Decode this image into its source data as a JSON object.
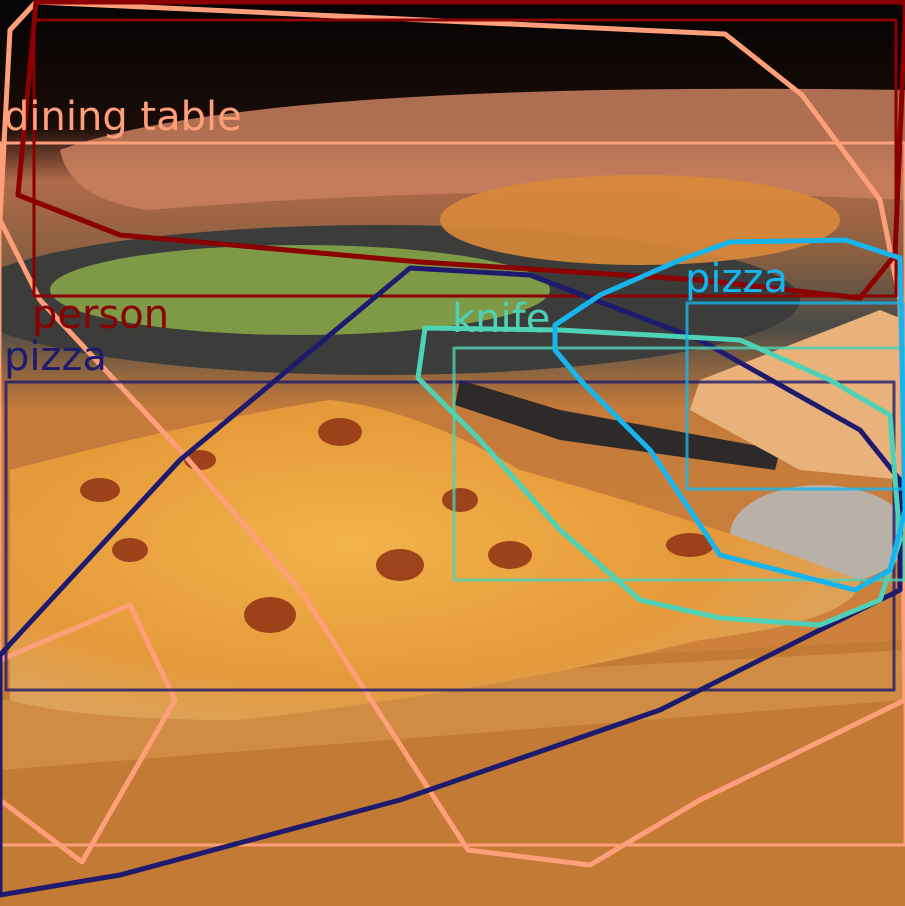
{
  "annotations": [
    {
      "label": "dining table",
      "color": "#ff9f7a"
    },
    {
      "label": "person",
      "color": "#8b0000"
    },
    {
      "label": "pizza",
      "color": "#1e1a6e"
    },
    {
      "label": "knife",
      "color": "#4fd1b5"
    },
    {
      "label": "pizza",
      "color": "#17b5ee"
    }
  ]
}
